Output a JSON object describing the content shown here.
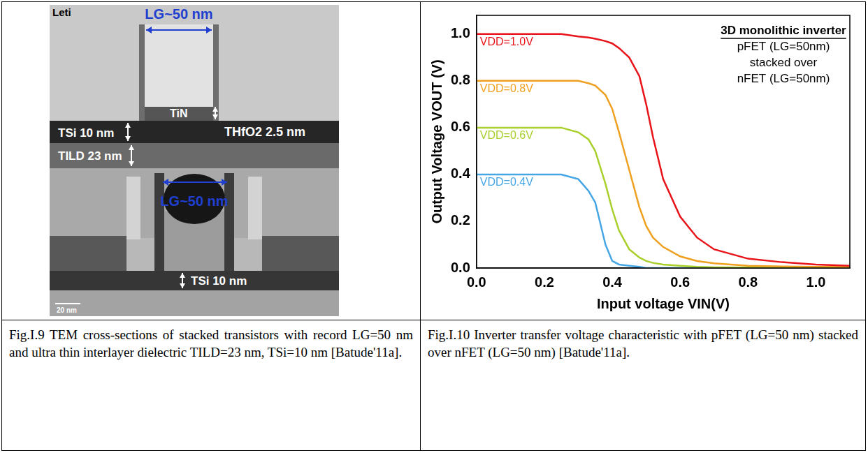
{
  "left_panel": {
    "logo": "Leti",
    "top_gate_length": "LG~50 nm",
    "gate_metal": "TiN",
    "oxide": "THfO2 2.5 nm",
    "top_si": "TSi 10 nm",
    "ild": "TILD 23 nm",
    "bottom_gate_length": "LG~50 nm",
    "bottom_si": "TSi 10 nm",
    "scale_bar": "20 nm"
  },
  "chart_data": {
    "type": "line",
    "annotation": [
      "3D monolithic inverter",
      "pFET (LG=50nm)",
      "stacked over",
      "nFET (LG=50nm)"
    ],
    "x_label": "Input voltage VIN(V)",
    "y_label": "Output Voltage VOUT (V)",
    "x": [
      0,
      0.1,
      0.2,
      0.25,
      0.3,
      0.33,
      0.35,
      0.38,
      0.4,
      0.42,
      0.45,
      0.48,
      0.5,
      0.52,
      0.55,
      0.6,
      0.65,
      0.7,
      0.8,
      0.9,
      1.0,
      1.1
    ],
    "series": [
      {
        "name": "VDD=1.0V",
        "color": "#e8141a",
        "values": [
          1.0,
          1.0,
          1.0,
          1.0,
          0.99,
          0.985,
          0.98,
          0.97,
          0.96,
          0.94,
          0.9,
          0.82,
          0.7,
          0.56,
          0.38,
          0.22,
          0.13,
          0.08,
          0.04,
          0.025,
          0.015,
          0.01
        ]
      },
      {
        "name": "VDD=0.8V",
        "color": "#f0a020",
        "values": [
          0.8,
          0.8,
          0.8,
          0.8,
          0.8,
          0.79,
          0.78,
          0.74,
          0.68,
          0.58,
          0.42,
          0.26,
          0.18,
          0.13,
          0.09,
          0.05,
          0.03,
          0.02,
          0.01,
          0.007,
          0.005,
          0.005
        ]
      },
      {
        "name": "VDD=0.6V",
        "color": "#a8cf2a",
        "values": [
          0.6,
          0.6,
          0.6,
          0.6,
          0.58,
          0.55,
          0.5,
          0.36,
          0.25,
          0.16,
          0.08,
          0.045,
          0.03,
          0.022,
          0.015,
          0.01,
          0.005,
          0.003,
          0.002,
          0.001,
          0,
          0
        ]
      },
      {
        "name": "VDD=0.4V",
        "color": "#45a6e6",
        "values": [
          0.4,
          0.4,
          0.4,
          0.4,
          0.38,
          0.33,
          0.28,
          0.1,
          0.03,
          0.015,
          0.01,
          0.005,
          0,
          0,
          0,
          0,
          0,
          0,
          0,
          0,
          0,
          0
        ]
      }
    ],
    "xlim": [
      0,
      1.1
    ],
    "xticks": [
      {
        "value": 0,
        "label": "0.0"
      },
      {
        "value": 0.2,
        "label": "0.2"
      },
      {
        "value": 0.4,
        "label": "0.4"
      },
      {
        "value": 0.6,
        "label": "0.6"
      },
      {
        "value": 0.8,
        "label": "0.8"
      },
      {
        "value": 1.0,
        "label": "1.0"
      }
    ],
    "ylim": [
      0,
      1.08
    ],
    "yticks": [
      {
        "value": 0,
        "label": "0.0"
      },
      {
        "value": 0.2,
        "label": "0.2"
      },
      {
        "value": 0.4,
        "label": "0.4"
      },
      {
        "value": 0.6,
        "label": "0.6"
      },
      {
        "value": 0.8,
        "label": "0.8"
      },
      {
        "value": 1.0,
        "label": "1.0"
      }
    ],
    "grid": false
  },
  "captions": [
    "Fig.I.9 TEM cross-sections of stacked transistors with record LG=50 nm and ultra thin interlayer dielectric TILD=23 nm, TSi=10 nm [Batude'11a].",
    "Fig.I.10 Inverter transfer voltage characteristic with pFET (LG=50 nm) stacked over nFET (LG=50 nm) [Batude'11a]."
  ]
}
